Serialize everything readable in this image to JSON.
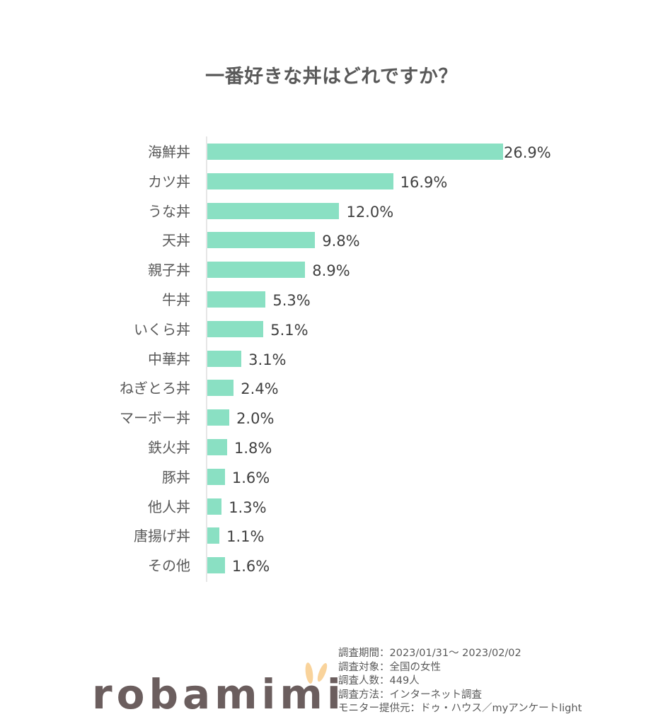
{
  "title": "一番好きな丼はどれですか？",
  "chart_data": {
    "type": "bar",
    "orientation": "horizontal",
    "title": "一番好きな丼はどれですか？",
    "xlabel": "",
    "ylabel": "",
    "unit": "%",
    "grid": false,
    "legend": null,
    "categories": [
      "海鮮丼",
      "カツ丼",
      "うな丼",
      "天丼",
      "親子丼",
      "牛丼",
      "いくら丼",
      "中華丼",
      "ねぎとろ丼",
      "マーボー丼",
      "鉄火丼",
      "豚丼",
      "他人丼",
      "唐揚げ丼",
      "その他"
    ],
    "values": [
      26.9,
      16.9,
      12.0,
      9.8,
      8.9,
      5.3,
      5.1,
      3.1,
      2.4,
      2.0,
      1.8,
      1.6,
      1.3,
      1.1,
      1.6
    ],
    "value_labels": [
      "26.9%",
      "16.9%",
      "12.0%",
      "9.8%",
      "8.9%",
      "5.3%",
      "5.1%",
      "3.1%",
      "2.4%",
      "2.0%",
      "1.8%",
      "1.6%",
      "1.3%",
      "1.1%",
      "1.6%"
    ],
    "bar_color": "#8ae0c3"
  },
  "notes": [
    "調査期間：2023/01/31～ 2023/02/02",
    "調査対象：全国の女性",
    "調査人数：449人",
    "調査方法：インターネット調査",
    "モニター提供元：ドゥ・ハウス／myアンケートlight"
  ],
  "logo": {
    "text": "robamimi",
    "text_color": "#6b5e5e",
    "accent_color": "#f9d39b"
  }
}
